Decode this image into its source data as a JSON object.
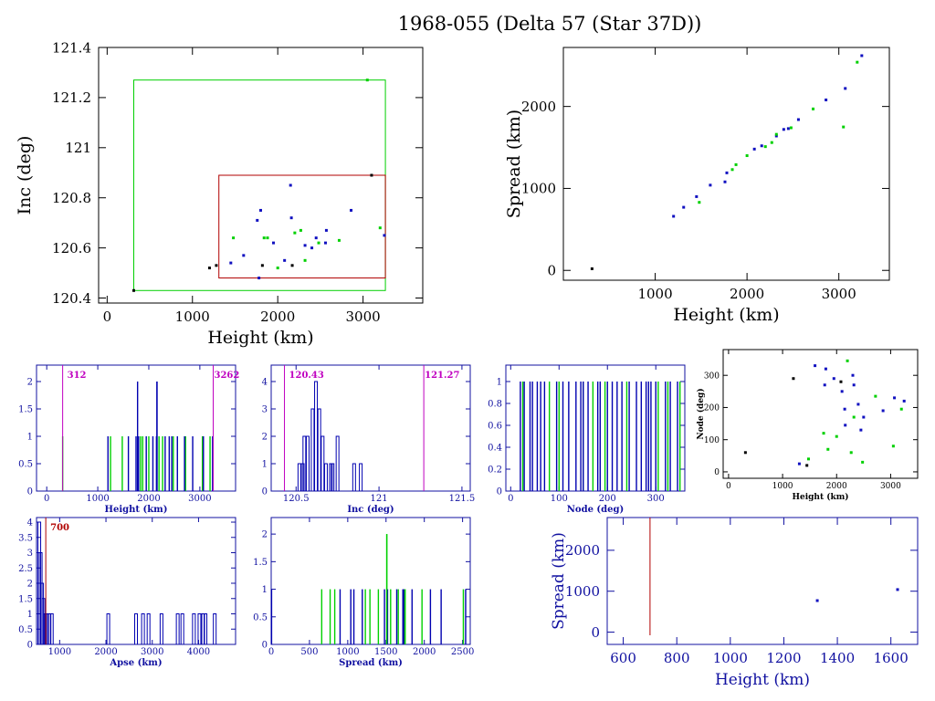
{
  "page": {
    "title": "1968-055 (Delta 57 (Star 37D))"
  },
  "colors": {
    "black": "#000000",
    "blue": "#0000a0",
    "green": "#00c000",
    "magenta": "#c000c0",
    "red": "#b00000",
    "plot_blue": "#1010a0"
  },
  "chart_data": [
    {
      "type": "scatter",
      "xlabel": "Height (km)",
      "ylabel": "Inc (deg)",
      "xlim": [
        -100,
        3700
      ],
      "ylim": [
        120.38,
        121.4
      ],
      "xticks": [
        0,
        1000,
        2000,
        3000
      ],
      "yticks": [
        120.4,
        120.6,
        120.8,
        121,
        121.2,
        121.4
      ],
      "boxes": [
        {
          "color": "green",
          "x": [
            312,
            3262
          ],
          "y": [
            120.43,
            121.27
          ]
        },
        {
          "color": "red",
          "x": [
            1310,
            3262
          ],
          "y": [
            120.48,
            120.89
          ]
        }
      ],
      "series": [
        {
          "color": "black",
          "points": [
            [
              312,
              120.43
            ],
            [
              1200,
              120.52
            ],
            [
              1280,
              120.53
            ],
            [
              1820,
              120.53
            ],
            [
              2170,
              120.53
            ],
            [
              3100,
              120.89
            ]
          ]
        },
        {
          "color": "blue",
          "points": [
            [
              1450,
              120.54
            ],
            [
              1600,
              120.57
            ],
            [
              1760,
              120.71
            ],
            [
              1780,
              120.48
            ],
            [
              1800,
              120.75
            ],
            [
              1950,
              120.62
            ],
            [
              2080,
              120.55
            ],
            [
              2150,
              120.85
            ],
            [
              2160,
              120.72
            ],
            [
              2320,
              120.61
            ],
            [
              2400,
              120.6
            ],
            [
              2450,
              120.64
            ],
            [
              2560,
              120.62
            ],
            [
              2570,
              120.67
            ],
            [
              2860,
              120.75
            ],
            [
              3250,
              120.65
            ]
          ]
        },
        {
          "color": "green",
          "points": [
            [
              1480,
              120.64
            ],
            [
              1840,
              120.64
            ],
            [
              1880,
              120.64
            ],
            [
              2000,
              120.52
            ],
            [
              2200,
              120.66
            ],
            [
              2270,
              120.67
            ],
            [
              2320,
              120.55
            ],
            [
              2480,
              120.62
            ],
            [
              2720,
              120.63
            ],
            [
              3050,
              121.27
            ],
            [
              3200,
              120.68
            ]
          ]
        }
      ]
    },
    {
      "type": "scatter",
      "xlabel": "Height (km)",
      "ylabel": "Spread (km)",
      "xlim": [
        0,
        3550
      ],
      "ylim": [
        -120,
        2720
      ],
      "xticks": [
        1000,
        2000,
        3000
      ],
      "yticks": [
        0,
        1000,
        2000
      ],
      "series": [
        {
          "color": "black",
          "points": [
            [
              312,
              20
            ]
          ]
        },
        {
          "color": "blue",
          "points": [
            [
              1200,
              660
            ],
            [
              1310,
              770
            ],
            [
              1450,
              900
            ],
            [
              1600,
              1040
            ],
            [
              1760,
              1080
            ],
            [
              1780,
              1190
            ],
            [
              2080,
              1480
            ],
            [
              2160,
              1520
            ],
            [
              2320,
              1640
            ],
            [
              2400,
              1720
            ],
            [
              2450,
              1730
            ],
            [
              2560,
              1840
            ],
            [
              2860,
              2080
            ],
            [
              3070,
              2220
            ],
            [
              3250,
              2620
            ]
          ]
        },
        {
          "color": "green",
          "points": [
            [
              1480,
              830
            ],
            [
              1840,
              1230
            ],
            [
              1880,
              1290
            ],
            [
              2000,
              1400
            ],
            [
              2200,
              1510
            ],
            [
              2270,
              1560
            ],
            [
              2320,
              1660
            ],
            [
              2480,
              1740
            ],
            [
              2720,
              1970
            ],
            [
              3050,
              1750
            ],
            [
              3200,
              2540
            ]
          ]
        }
      ]
    },
    {
      "type": "histogram",
      "xlabel": "Height (km)",
      "xlim": [
        -200,
        3700
      ],
      "ylim": [
        0,
        2.3
      ],
      "xticks": [
        0,
        1000,
        2000,
        3000
      ],
      "yticks": [
        0,
        0.5,
        1,
        1.5,
        2
      ],
      "markers": [
        {
          "x": 312,
          "label": "312"
        },
        {
          "x": 3262,
          "label": "3262"
        }
      ],
      "bars": {
        "blue": [
          1200,
          1600,
          1750,
          1800,
          1950,
          2080,
          2150,
          2160,
          2320,
          2400,
          2450,
          2560,
          2700,
          2860,
          3070,
          3250
        ],
        "green": [
          312,
          1250,
          1480,
          1840,
          1880,
          2000,
          2200,
          2270,
          2480,
          2720,
          3050,
          3200
        ],
        "tall": [
          1780,
          2160
        ]
      }
    },
    {
      "type": "histogram",
      "xlabel": "Inc (deg)",
      "xlim": [
        120.35,
        121.55
      ],
      "ylim": [
        0,
        4.6
      ],
      "xticks": [
        120.5,
        121,
        121.5
      ],
      "yticks": [
        0,
        1,
        2,
        3,
        4
      ],
      "markers": [
        {
          "x": 120.43,
          "label": "120.43"
        },
        {
          "x": 121.27,
          "label": "121.27"
        }
      ],
      "bins": [
        [
          120.52,
          1
        ],
        [
          120.54,
          1
        ],
        [
          120.55,
          2
        ],
        [
          120.57,
          2
        ],
        [
          120.6,
          3
        ],
        [
          120.62,
          4
        ],
        [
          120.64,
          3
        ],
        [
          120.66,
          2
        ],
        [
          120.68,
          1
        ],
        [
          120.71,
          1
        ],
        [
          120.72,
          1
        ],
        [
          120.75,
          2
        ],
        [
          120.85,
          1
        ],
        [
          120.89,
          1
        ]
      ]
    },
    {
      "type": "histogram",
      "xlabel": "Node (deg)",
      "xlim": [
        -10,
        360
      ],
      "ylim": [
        0,
        1.15
      ],
      "xticks": [
        0,
        100,
        200,
        300
      ],
      "yticks": [
        0,
        0.2,
        0.4,
        0.6,
        0.8,
        1
      ],
      "bars": {
        "blue": [
          20,
          28,
          40,
          45,
          55,
          62,
          70,
          95,
          108,
          120,
          135,
          145,
          150,
          160,
          180,
          185,
          200,
          210,
          220,
          230,
          245,
          260,
          270,
          280,
          285,
          290,
          300,
          320,
          330,
          345
        ],
        "green": [
          25,
          80,
          100,
          150,
          170,
          195,
          240,
          305,
          325,
          350
        ]
      }
    },
    {
      "type": "scatter",
      "xlabel": "Height (km)",
      "ylabel": "Node (deg)",
      "xlim": [
        -100,
        3500
      ],
      "ylim": [
        -20,
        380
      ],
      "xticks": [
        0,
        1000,
        2000,
        3000
      ],
      "yticks": [
        0,
        100,
        200,
        300
      ],
      "series": [
        {
          "color": "black",
          "points": [
            [
              312,
              60
            ],
            [
              1200,
              290
            ],
            [
              1450,
              20
            ],
            [
              2080,
              280
            ]
          ]
        },
        {
          "color": "blue",
          "points": [
            [
              1310,
              25
            ],
            [
              1600,
              330
            ],
            [
              1780,
              270
            ],
            [
              1800,
              320
            ],
            [
              1950,
              290
            ],
            [
              2100,
              250
            ],
            [
              2150,
              195
            ],
            [
              2160,
              145
            ],
            [
              2300,
              300
            ],
            [
              2320,
              270
            ],
            [
              2400,
              210
            ],
            [
              2450,
              130
            ],
            [
              2500,
              170
            ],
            [
              2860,
              190
            ],
            [
              3070,
              230
            ],
            [
              3250,
              220
            ]
          ]
        },
        {
          "color": "green",
          "points": [
            [
              1480,
              40
            ],
            [
              1760,
              120
            ],
            [
              1840,
              70
            ],
            [
              2000,
              110
            ],
            [
              2200,
              345
            ],
            [
              2270,
              60
            ],
            [
              2320,
              170
            ],
            [
              2480,
              30
            ],
            [
              2720,
              235
            ],
            [
              3050,
              80
            ],
            [
              3200,
              195
            ]
          ]
        }
      ]
    },
    {
      "type": "histogram",
      "xlabel": "Apse (km)",
      "xlim": [
        500,
        4800
      ],
      "ylim": [
        0,
        4.15
      ],
      "xticks": [
        1000,
        2000,
        3000,
        4000
      ],
      "yticks": [
        0,
        0.5,
        1,
        1.5,
        2,
        2.5,
        3,
        3.5,
        4
      ],
      "markers": [
        {
          "x": 700,
          "label": "700"
        }
      ],
      "bins": [
        [
          560,
          4
        ],
        [
          590,
          3
        ],
        [
          620,
          2
        ],
        [
          650,
          1.5
        ],
        [
          690,
          1
        ],
        [
          730,
          1
        ],
        [
          780,
          1
        ],
        [
          830,
          1
        ],
        [
          2050,
          1
        ],
        [
          2650,
          1
        ],
        [
          2800,
          1
        ],
        [
          2920,
          1
        ],
        [
          3200,
          1
        ],
        [
          3550,
          1
        ],
        [
          3650,
          1
        ],
        [
          3900,
          1
        ],
        [
          4020,
          1
        ],
        [
          4100,
          1
        ],
        [
          4150,
          1
        ],
        [
          4350,
          1
        ]
      ]
    },
    {
      "type": "histogram",
      "xlabel": "Spread (km)",
      "xlim": [
        0,
        2600
      ],
      "ylim": [
        0,
        2.3
      ],
      "xticks": [
        0,
        500,
        1000,
        1500,
        2000,
        2500
      ],
      "yticks": [
        0,
        0.5,
        1,
        1.5,
        2
      ],
      "bars": {
        "blue": [
          5,
          900,
          1040,
          1080,
          1190,
          1480,
          1520,
          1640,
          1720,
          1730,
          1840,
          2080,
          2220,
          2540
        ],
        "green": [
          660,
          770,
          830,
          1230,
          1290,
          1400,
          1510,
          1560,
          1660,
          1740,
          1750,
          1970,
          2510
        ],
        "tall": [
          1510
        ]
      }
    },
    {
      "type": "scatter",
      "xlabel": "Height (km)",
      "ylabel": "Spread (km)",
      "xlim": [
        540,
        1700
      ],
      "ylim": [
        -300,
        2800
      ],
      "xticks": [
        600,
        800,
        1000,
        1200,
        1400,
        1600
      ],
      "yticks": [
        0,
        1000,
        2000
      ],
      "markers": [
        {
          "x": 700,
          "color": "red"
        }
      ],
      "series": [
        {
          "color": "blue",
          "points": [
            [
              1325,
              770
            ],
            [
              1625,
              1040
            ]
          ]
        }
      ]
    }
  ]
}
